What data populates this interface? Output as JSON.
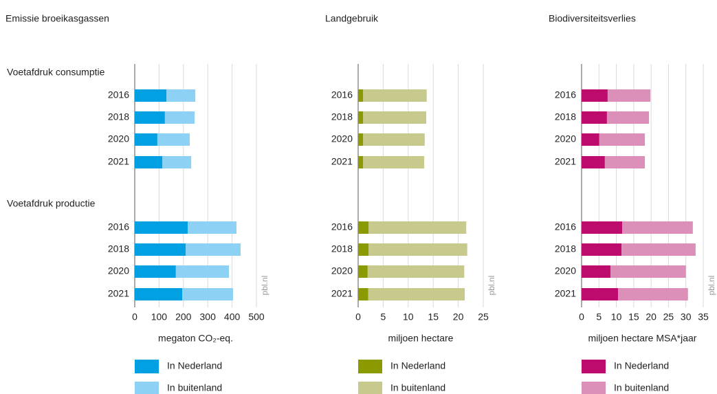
{
  "chart_data": [
    {
      "type": "bar",
      "title": "Emissie broeikasgassen",
      "x_label": "megaton CO₂-eq.",
      "watermark": "pbl.nl",
      "groups": [
        {
          "name": "Voetafdruk consumptie",
          "categories": [
            "2016",
            "2018",
            "2020",
            "2021"
          ]
        },
        {
          "name": "Voetafdruk productie",
          "categories": [
            "2016",
            "2018",
            "2020",
            "2021"
          ]
        }
      ],
      "series": [
        {
          "name": "In Nederland",
          "color": "#00a0e2",
          "values": [
            130,
            124,
            93,
            113,
            218,
            209,
            169,
            195
          ]
        },
        {
          "name": "In buitenland",
          "color": "#8dd1f4",
          "values": [
            119,
            122,
            133,
            119,
            200,
            226,
            218,
            209
          ]
        }
      ],
      "xlim": [
        0,
        500
      ],
      "xticks": [
        0,
        100,
        200,
        300,
        400,
        500
      ],
      "grid": true,
      "stacked": true
    },
    {
      "type": "bar",
      "title": "Landgebruik",
      "x_label": "miljoen hectare",
      "watermark": "pbl.nl",
      "groups": [
        {
          "categories": [
            "2016",
            "2018",
            "2020",
            "2021"
          ]
        },
        {
          "categories": [
            "2016",
            "2018",
            "2020",
            "2021"
          ]
        }
      ],
      "series": [
        {
          "name": "In Nederland",
          "color": "#8a9a00",
          "values": [
            1.0,
            1.0,
            1.0,
            1.0,
            2.1,
            2.1,
            1.9,
            2.0
          ]
        },
        {
          "name": "In buitenland",
          "color": "#c8c98c",
          "values": [
            12.7,
            12.6,
            12.3,
            12.2,
            19.5,
            19.7,
            19.3,
            19.3
          ]
        }
      ],
      "xlim": [
        0,
        25
      ],
      "xticks": [
        0,
        5,
        10,
        15,
        20,
        25
      ],
      "grid": true,
      "stacked": true
    },
    {
      "type": "bar",
      "title": "Biodiversiteitsverlies",
      "x_label": "miljoen hectare MSA*jaar",
      "watermark": "pbl.nl",
      "groups": [
        {
          "categories": [
            "2016",
            "2018",
            "2020",
            "2021"
          ]
        },
        {
          "categories": [
            "2016",
            "2018",
            "2020",
            "2021"
          ]
        }
      ],
      "series": [
        {
          "name": "In Nederland",
          "color": "#be0b6e",
          "values": [
            7.5,
            7.3,
            5.1,
            6.7,
            11.7,
            11.5,
            8.3,
            10.5
          ]
        },
        {
          "name": "In buitenland",
          "color": "#dc8fb8",
          "values": [
            12.3,
            12.1,
            13.1,
            11.5,
            20.3,
            21.3,
            21.7,
            20.1
          ]
        }
      ],
      "xlim": [
        0,
        35
      ],
      "xticks": [
        0,
        5,
        10,
        15,
        20,
        25,
        30,
        35
      ],
      "grid": true,
      "stacked": true
    }
  ]
}
